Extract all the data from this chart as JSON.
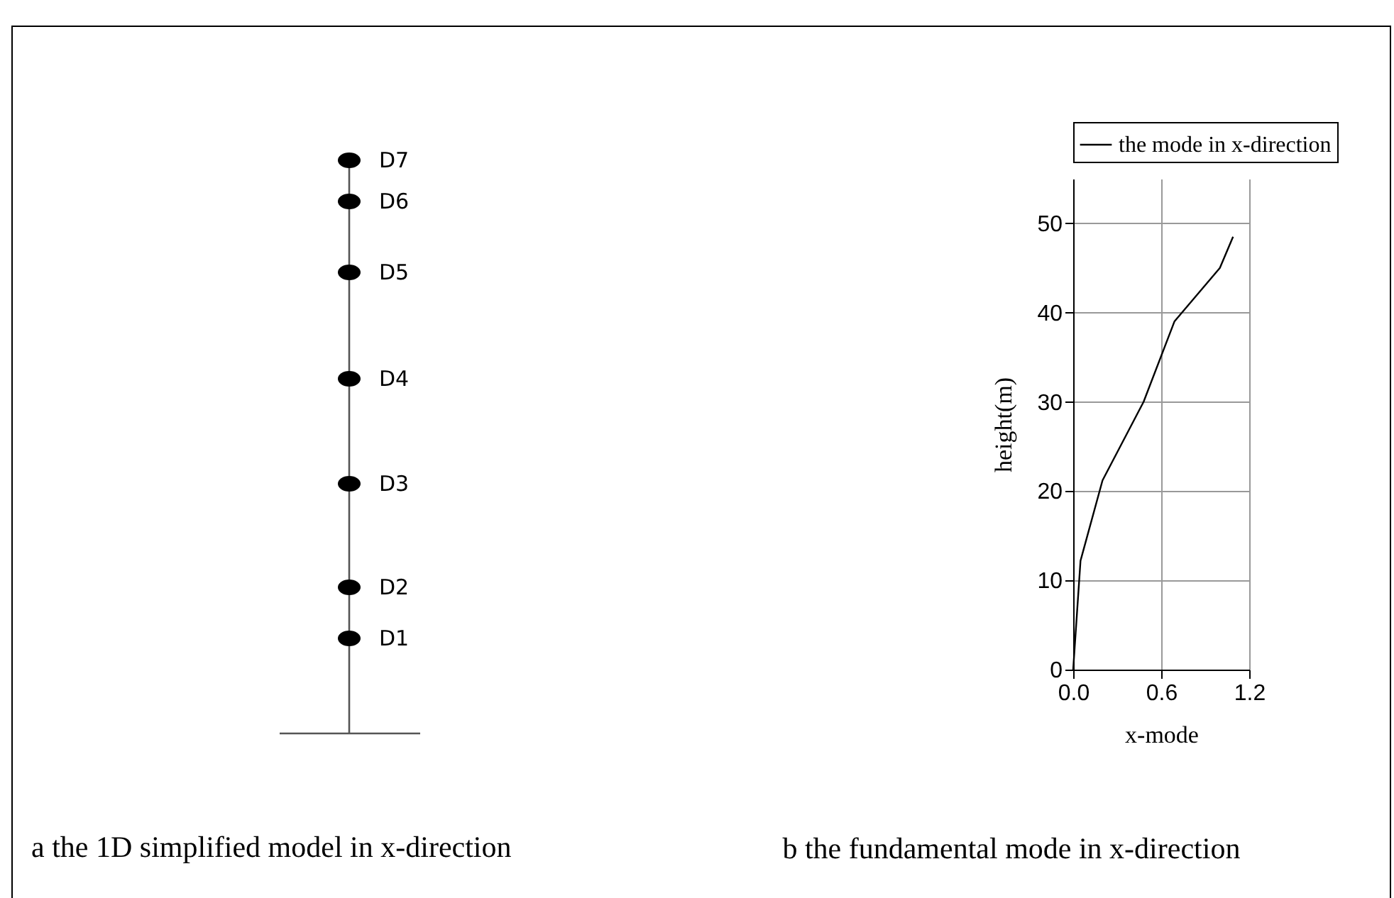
{
  "chart_data": [
    {
      "type": "other",
      "title": "a the 1D simplified model in x-direction",
      "annotations": [
        "D1",
        "D2",
        "D3",
        "D4",
        "D5",
        "D6",
        "D7"
      ]
    },
    {
      "type": "line",
      "title": "b the fundamental mode in x-direction",
      "xlabel": "x-mode",
      "ylabel": "height(m)",
      "series": [
        {
          "name": "the mode in x-direction",
          "color": "#000000",
          "x": [
            0,
            0.05,
            0.2,
            0.48,
            0.69,
            1.0,
            1.09
          ],
          "values": [
            0,
            12.2,
            21.2,
            30,
            39,
            45,
            48.5
          ]
        }
      ],
      "xlim": [
        0,
        1.2
      ],
      "xticks": [
        {
          "value": 0,
          "label": "0.0"
        },
        {
          "value": 0.6,
          "label": "0.6"
        },
        {
          "value": 1.2,
          "label": "1.2"
        }
      ],
      "ylim": [
        0,
        55
      ],
      "yticks": [
        0,
        10,
        20,
        30,
        40,
        50
      ],
      "grid": true,
      "legend": "top",
      "line_style": "solid",
      "marker": "none"
    }
  ]
}
